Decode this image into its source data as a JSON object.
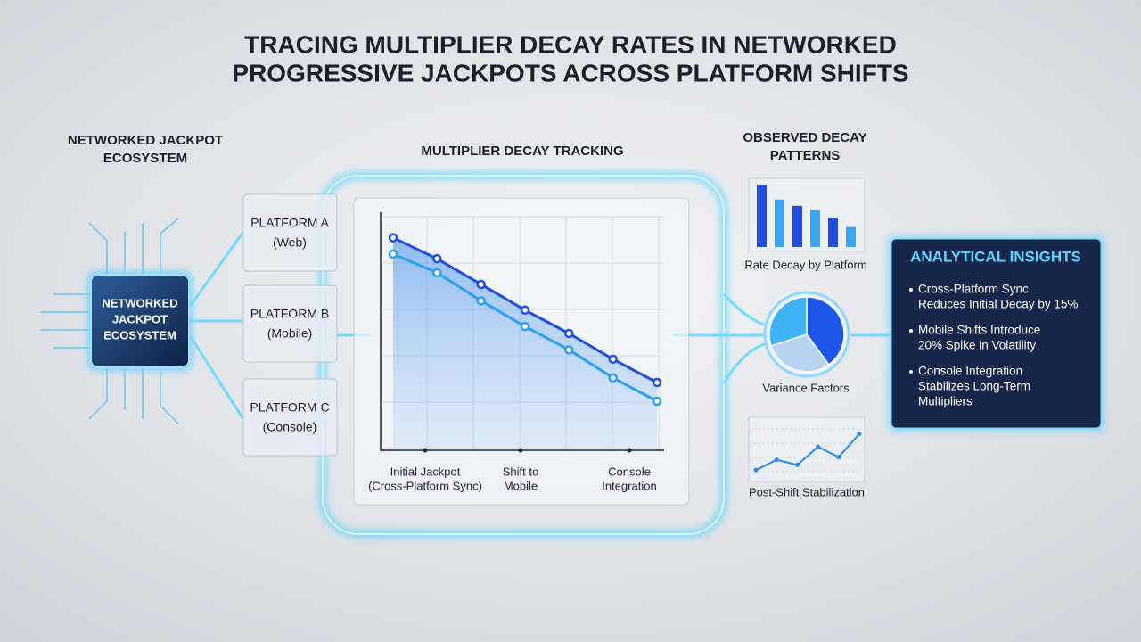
{
  "header": {
    "title_lines": [
      "TRACING MULTIPLIER DECAY RATES IN NETWORKED",
      "PROGRESSIVE JACKPOTS ACROSS PLATFORM SHIFTS"
    ]
  },
  "ecosystem": {
    "heading_lines": [
      "NETWORKED JACKPOT",
      "ECOSYSTEM"
    ],
    "chip_lines": [
      "NETWORKED",
      "JACKPOT",
      "ECOSYSTEM"
    ],
    "platforms": [
      {
        "name": "PLATFORM A",
        "sub": "(Web)"
      },
      {
        "name": "PLATFORM B",
        "sub": "(Mobile)"
      },
      {
        "name": "PLATFORM C",
        "sub": "(Console)"
      }
    ]
  },
  "tracking": {
    "heading": "MULTIPLIER DECAY TRACKING",
    "chart": {
      "type": "line",
      "x_labels": [
        [
          "Initial Jackpot",
          "(Cross-Platform Sync)"
        ],
        [
          "Shift to",
          "Mobile"
        ],
        [
          "Console",
          "Integration"
        ]
      ],
      "ylim": [
        0,
        10
      ],
      "series": [
        {
          "color": "#1f4fe0",
          "values": [
            9.1,
            8.2,
            7.1,
            6.0,
            5.0,
            3.9,
            2.9
          ]
        },
        {
          "color": "#2aa0f0",
          "values": [
            8.4,
            7.6,
            6.4,
            5.3,
            4.3,
            3.1,
            2.1
          ]
        }
      ]
    }
  },
  "patterns": {
    "heading_lines": [
      "OBSERVED DECAY",
      "PATTERNS"
    ],
    "bar_chart": {
      "type": "bar",
      "label": "Rate Decay by Platform",
      "ylim": [
        0,
        10
      ],
      "values": [
        10,
        7.6,
        6.6,
        5.9,
        4.7,
        3.2
      ],
      "colors": [
        "#1f4fe0",
        "#3aa6f2"
      ]
    },
    "pie_chart": {
      "type": "pie",
      "label": "Variance Factors",
      "values": [
        40,
        30,
        30
      ],
      "colors": [
        "#1d56e8",
        "#b9d4f2",
        "#3fb3f5"
      ]
    },
    "line_chart": {
      "type": "line",
      "label": "Post-Shift Stabilization",
      "ylim": [
        0,
        10
      ],
      "values": [
        1,
        3,
        2,
        5.5,
        3.5,
        8
      ],
      "color": "#2a8cf0"
    }
  },
  "insights": {
    "title": "ANALYTICAL INSIGHTS",
    "items": [
      [
        "Cross-Platform Sync",
        "Reduces Initial Decay by 15%"
      ],
      [
        "Mobile Shifts Introduce",
        "20% Spike in Volatility"
      ],
      [
        "Console Integration",
        "Stabilizes Long-Term",
        "Multipliers"
      ]
    ]
  }
}
